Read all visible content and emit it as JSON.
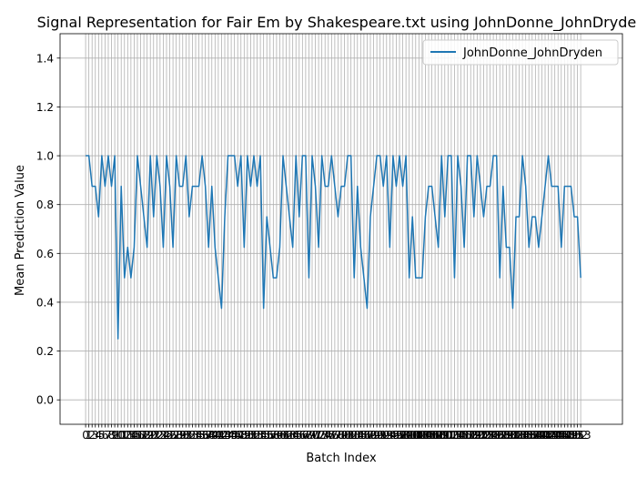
{
  "chart_data": {
    "type": "line",
    "title": "Signal Representation for Fair Em by Shakespeare.txt using JohnDonne_JohnDryden",
    "xlabel": "Batch Index",
    "ylabel": "Mean Prediction Value",
    "xlim": [
      -7.9,
      165.9
    ],
    "ylim": [
      -0.1,
      1.5
    ],
    "yticks": [
      0.0,
      0.2,
      0.4,
      0.6,
      0.8,
      1.0,
      1.2,
      1.4
    ],
    "grid": true,
    "legend_position": "top-right",
    "color": "#1f77b4",
    "series": [
      {
        "name": "JohnDonne_JohnDryden",
        "values": [
          1.0,
          1.0,
          0.875,
          0.875,
          0.75,
          1.0,
          0.875,
          1.0,
          0.875,
          1.0,
          0.25,
          0.875,
          0.5,
          0.625,
          0.5,
          0.625,
          1.0,
          0.875,
          0.75,
          0.625,
          1.0,
          0.75,
          1.0,
          0.875,
          0.625,
          1.0,
          0.875,
          0.625,
          1.0,
          0.875,
          0.875,
          1.0,
          0.75,
          0.875,
          0.875,
          0.875,
          1.0,
          0.875,
          0.625,
          0.875,
          0.625,
          0.5,
          0.375,
          0.75,
          1.0,
          1.0,
          1.0,
          0.875,
          1.0,
          0.625,
          1.0,
          0.875,
          1.0,
          0.875,
          1.0,
          0.375,
          0.75,
          0.625,
          0.5,
          0.5,
          0.625,
          1.0,
          0.875,
          0.75,
          0.625,
          1.0,
          0.75,
          1.0,
          1.0,
          0.5,
          1.0,
          0.875,
          0.625,
          1.0,
          0.875,
          0.875,
          1.0,
          0.875,
          0.75,
          0.875,
          0.875,
          1.0,
          1.0,
          0.5,
          0.875,
          0.625,
          0.5,
          0.375,
          0.75,
          0.875,
          1.0,
          1.0,
          0.875,
          1.0,
          0.625,
          1.0,
          0.875,
          1.0,
          0.875,
          1.0,
          0.5,
          0.75,
          0.5,
          0.5,
          0.5,
          0.75,
          0.875,
          0.875,
          0.75,
          0.625,
          1.0,
          0.75,
          1.0,
          1.0,
          0.5,
          1.0,
          0.875,
          0.625,
          1.0,
          1.0,
          0.75,
          1.0,
          0.875,
          0.75,
          0.875,
          0.875,
          1.0,
          1.0,
          0.5,
          0.875,
          0.625,
          0.625,
          0.375,
          0.75,
          0.75,
          1.0,
          0.875,
          0.625,
          0.75,
          0.75,
          0.625,
          0.75,
          0.875,
          1.0,
          0.875,
          0.875,
          0.875,
          0.625,
          0.875,
          0.875,
          0.875,
          0.75,
          0.75,
          0.5
        ]
      }
    ]
  }
}
